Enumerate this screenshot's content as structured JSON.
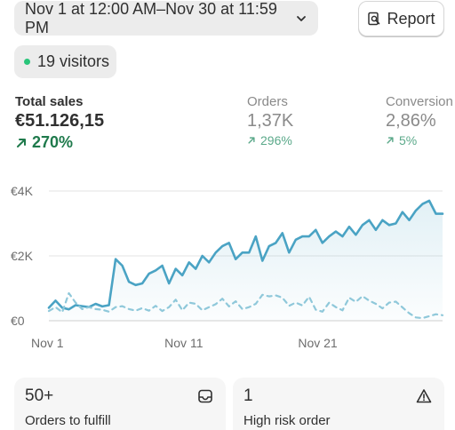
{
  "toolbar": {
    "date_range": "Nov 1 at 12:00 AM–Nov 30 at 11:59 PM",
    "report_label": "Report"
  },
  "visitors": {
    "text": "19 visitors",
    "status_color": "#29c57a"
  },
  "metrics": {
    "total_sales": {
      "label": "Total sales",
      "value": "€51.126,15",
      "delta": "270%"
    },
    "orders": {
      "label": "Orders",
      "value": "1,37K",
      "delta": "296%"
    },
    "conversion": {
      "label": "Conversion",
      "value": "2,86%",
      "delta": "5%"
    }
  },
  "chart_data": {
    "type": "line",
    "x": [
      1,
      1.5,
      2,
      2.5,
      3,
      3.5,
      4,
      4.5,
      5,
      5.5,
      6,
      6.5,
      7,
      7.5,
      8,
      8.5,
      9,
      9.5,
      10,
      10.5,
      11,
      11.5,
      12,
      12.5,
      13,
      13.5,
      14,
      14.5,
      15,
      15.5,
      16,
      16.5,
      17,
      17.5,
      18,
      18.5,
      19,
      19.5,
      20,
      20.5,
      21,
      21.5,
      22,
      22.5,
      23,
      23.5,
      24,
      24.5,
      25,
      25.5,
      26,
      26.5,
      27,
      27.5,
      28,
      28.5,
      29,
      29.5,
      30,
      30.5
    ],
    "series": [
      {
        "style": "solid",
        "color": "#4aa3c4",
        "values": [
          400,
          620,
          400,
          350,
          480,
          450,
          420,
          520,
          440,
          480,
          1900,
          1700,
          1200,
          1100,
          1150,
          1450,
          1550,
          1700,
          1150,
          1600,
          1400,
          1800,
          1600,
          2000,
          1800,
          2100,
          2300,
          2400,
          1900,
          2100,
          2100,
          2600,
          1850,
          2300,
          2400,
          2700,
          2100,
          2500,
          2600,
          2600,
          2800,
          2400,
          2600,
          2750,
          2600,
          2900,
          2650,
          2950,
          3100,
          2800,
          3100,
          2950,
          3000,
          3350,
          3100,
          3400,
          3600,
          3700,
          3300,
          3300
        ]
      },
      {
        "style": "dashed",
        "color": "#8fc8da",
        "values": [
          300,
          420,
          260,
          850,
          560,
          360,
          420,
          360,
          340,
          280,
          420,
          450,
          360,
          310,
          390,
          310,
          460,
          300,
          420,
          650,
          320,
          560,
          520,
          320,
          420,
          510,
          680,
          440,
          600,
          360,
          420,
          520,
          800,
          750,
          780,
          710,
          460,
          560,
          470,
          740,
          340,
          280,
          560,
          420,
          320,
          710,
          580,
          760,
          620,
          520,
          380,
          560,
          590,
          410,
          230,
          100,
          80,
          140,
          200,
          170
        ]
      }
    ],
    "x_ticks": [
      {
        "value": 1,
        "label": "Nov 1"
      },
      {
        "value": 11,
        "label": "Nov 11"
      },
      {
        "value": 21,
        "label": "Nov 21"
      }
    ],
    "y_ticks": [
      {
        "value": 0,
        "label": "€0"
      },
      {
        "value": 2000,
        "label": "€2K"
      },
      {
        "value": 4000,
        "label": "€4K"
      }
    ],
    "ylim": [
      0,
      4000
    ],
    "xlim": [
      1,
      30.5
    ],
    "grid": true
  },
  "cards": [
    {
      "number": "50+",
      "label": "Orders to fulfill",
      "icon": "inbox-icon"
    },
    {
      "number": "1",
      "label": "High risk order",
      "icon": "warning-icon"
    }
  ]
}
